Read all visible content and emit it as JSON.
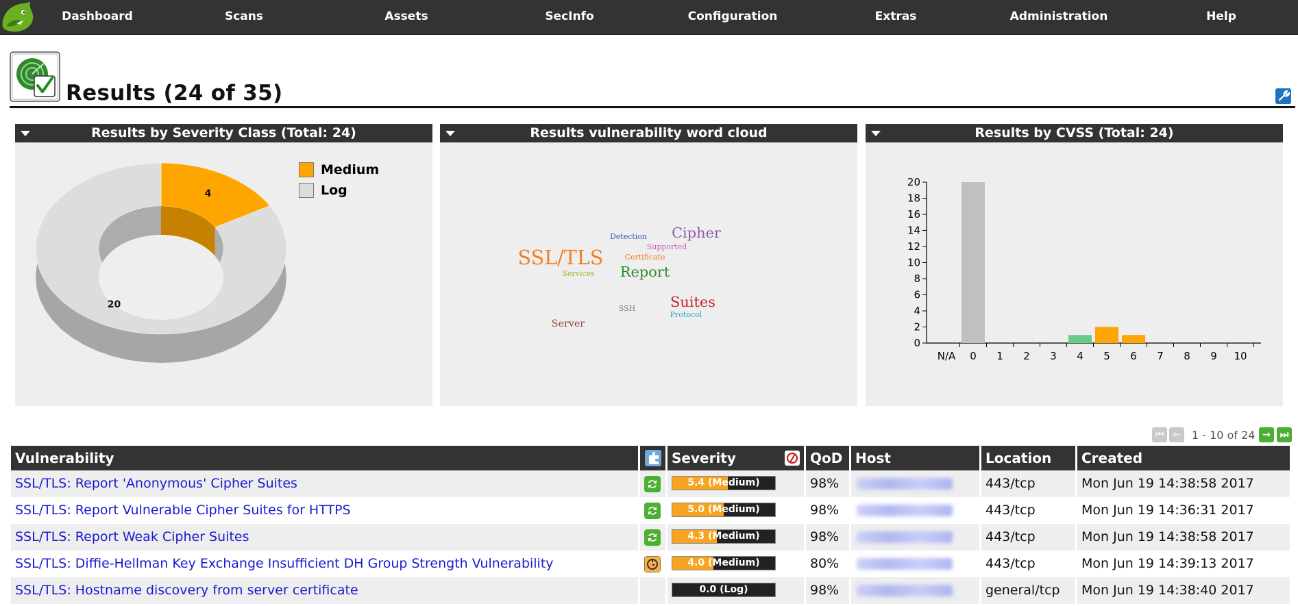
{
  "nav": {
    "items": [
      "Dashboard",
      "Scans",
      "Assets",
      "SecInfo",
      "Configuration",
      "Extras",
      "Administration",
      "Help"
    ]
  },
  "page": {
    "title": "Results (24 of 35)",
    "icon": "results-radar-icon"
  },
  "panels": {
    "severity": {
      "title": "Results by Severity Class (Total: 24)",
      "legend": [
        {
          "label": "Medium",
          "color": "#FFA500"
        },
        {
          "label": "Log",
          "color": "#DDDDDD"
        }
      ]
    },
    "wordcloud": {
      "title": "Results vulnerability word cloud"
    },
    "cvss": {
      "title": "Results by CVSS (Total: 24)"
    }
  },
  "chart_data": [
    {
      "type": "pie",
      "subtype": "donut-3d",
      "labels": [
        "Medium",
        "Log"
      ],
      "values": [
        4,
        20
      ],
      "colors": [
        "#FFA500",
        "#DDDDDD"
      ],
      "legend": "top-right"
    },
    {
      "type": "wordcloud",
      "words": [
        {
          "text": "SSL/TLS",
          "size": 26,
          "color": "#F07F24"
        },
        {
          "text": "Cipher",
          "size": 19,
          "color": "#8E5CB3"
        },
        {
          "text": "Report",
          "size": 19,
          "color": "#2E8B2E"
        },
        {
          "text": "Suites",
          "size": 19,
          "color": "#C0282D"
        },
        {
          "text": "Server",
          "size": 13,
          "color": "#8B4A3A"
        },
        {
          "text": "Detection",
          "size": 10,
          "color": "#2A5DA8"
        },
        {
          "text": "Supported",
          "size": 10,
          "color": "#D25AB9"
        },
        {
          "text": "Certificate",
          "size": 10,
          "color": "#F07F24"
        },
        {
          "text": "Services",
          "size": 10,
          "color": "#A4B22A"
        },
        {
          "text": "SSH",
          "size": 10,
          "color": "#7F7F7F"
        },
        {
          "text": "Protocol",
          "size": 10,
          "color": "#18A8C4"
        }
      ]
    },
    {
      "type": "bar",
      "categories": [
        "N/A",
        "0",
        "1",
        "2",
        "3",
        "4",
        "5",
        "6",
        "7",
        "8",
        "9",
        "10"
      ],
      "values": [
        0,
        20,
        0,
        0,
        0,
        1,
        2,
        1,
        0,
        0,
        0,
        0
      ],
      "colors": [
        "#C0C0C0",
        "#C0C0C0",
        "#C0C0C0",
        "#C0C0C0",
        "#C0C0C0",
        "#66CC88",
        "#FFA500",
        "#FFA500",
        "#FFA500",
        "#D9534F",
        "#D9534F",
        "#D9534F"
      ],
      "ylim": [
        0,
        20
      ],
      "yticks": [
        0,
        2,
        4,
        6,
        8,
        10,
        12,
        14,
        16,
        18,
        20
      ],
      "grid": false,
      "xlabel": "",
      "ylabel": ""
    }
  ],
  "pagination": {
    "text": "1 - 10 of 24"
  },
  "table": {
    "headers": {
      "vulnerability": "Vulnerability",
      "severity": "Severity",
      "qod": "QoD",
      "host": "Host",
      "location": "Location",
      "created": "Created"
    },
    "rows": [
      {
        "vulnerability": "SSL/TLS: Report 'Anonymous' Cipher Suites",
        "solution": "vendorfix",
        "severity_label": "5.4 (Medium)",
        "severity_score": 5.4,
        "qod": "98%",
        "location": "443/tcp",
        "created": "Mon Jun 19 14:38:58 2017"
      },
      {
        "vulnerability": "SSL/TLS: Report Vulnerable Cipher Suites for HTTPS",
        "solution": "vendorfix",
        "severity_label": "5.0 (Medium)",
        "severity_score": 5.0,
        "qod": "98%",
        "location": "443/tcp",
        "created": "Mon Jun 19 14:36:31 2017"
      },
      {
        "vulnerability": "SSL/TLS: Report Weak Cipher Suites",
        "solution": "vendorfix",
        "severity_label": "4.3 (Medium)",
        "severity_score": 4.3,
        "qod": "98%",
        "location": "443/tcp",
        "created": "Mon Jun 19 14:38:58 2017"
      },
      {
        "vulnerability": "SSL/TLS: Diffie-Hellman Key Exchange Insufficient DH Group Strength Vulnerability",
        "solution": "workaround",
        "severity_label": "4.0 (Medium)",
        "severity_score": 4.0,
        "qod": "80%",
        "location": "443/tcp",
        "created": "Mon Jun 19 14:39:13 2017"
      },
      {
        "vulnerability": "SSL/TLS: Hostname discovery from server certificate",
        "solution": "",
        "severity_label": "0.0 (Log)",
        "severity_score": 0.0,
        "qod": "98%",
        "location": "general/tcp",
        "created": "Mon Jun 19 14:38:40 2017"
      }
    ]
  }
}
